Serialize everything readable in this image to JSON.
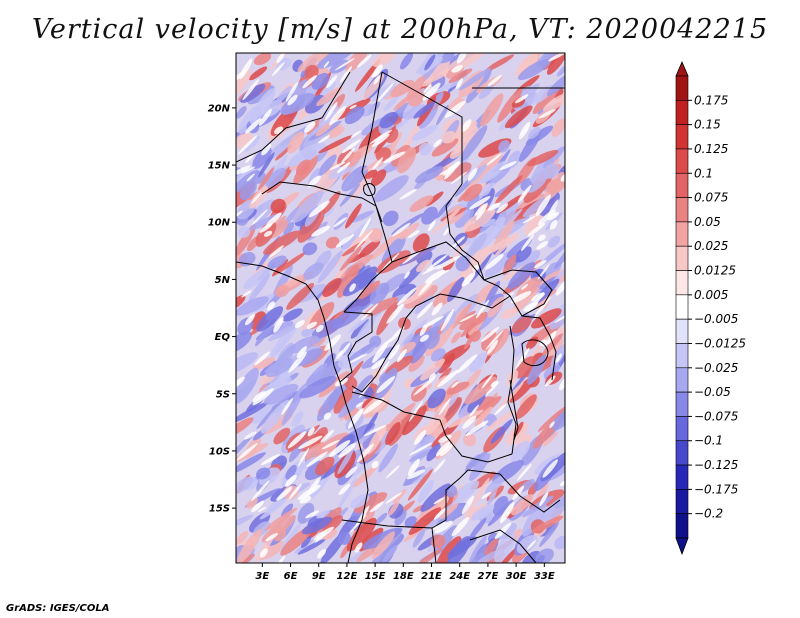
{
  "title": "Vertical velocity [m/s] at 200hPa, VT: 2020042215",
  "footer": "GrADS: IGES/COLA",
  "map": {
    "lat_labels": [
      "20N",
      "15N",
      "10N",
      "5N",
      "EQ",
      "5S",
      "10S",
      "15S"
    ],
    "lat_values": [
      20,
      15,
      10,
      5,
      0,
      -5,
      -10,
      -15
    ],
    "lon_labels": [
      "3E",
      "6E",
      "9E",
      "12E",
      "15E",
      "18E",
      "21E",
      "24E",
      "27E",
      "30E",
      "33E"
    ],
    "lon_values": [
      3,
      6,
      9,
      12,
      15,
      18,
      21,
      24,
      27,
      30,
      33
    ],
    "lat_range": [
      -19.8,
      24.8
    ],
    "lon_range": [
      0.2,
      35.2
    ]
  },
  "colorbar": {
    "labels": [
      "0.175",
      "0.15",
      "0.125",
      "0.1",
      "0.075",
      "0.05",
      "0.025",
      "0.0125",
      "0.005",
      "-0.005",
      "-0.0125",
      "-0.025",
      "-0.05",
      "-0.075",
      "-0.1",
      "-0.125",
      "-0.175",
      "-0.2"
    ],
    "colors": [
      "#a01414",
      "#c02020",
      "#d23434",
      "#dc4a4a",
      "#e26464",
      "#ea8282",
      "#f2a4a4",
      "#f8c8c8",
      "#fde6e6",
      "#ffffff",
      "#e2e2fb",
      "#c6c6f6",
      "#a8a8f0",
      "#8888e8",
      "#6868de",
      "#4848cc",
      "#2828b8",
      "#1a1aa0",
      "#10108a"
    ],
    "top_triangle_color": "#a01414",
    "bottom_triangle_color": "#10108a"
  }
}
